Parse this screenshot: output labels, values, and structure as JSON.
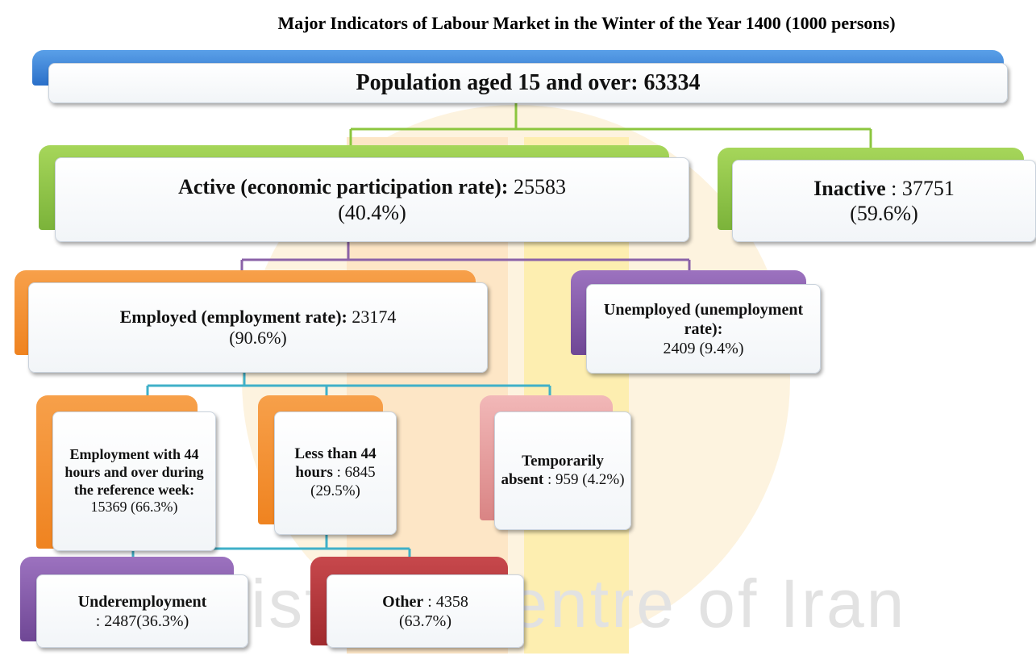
{
  "title": "Major Indicators of Labour Market in the Winter of the Year 1400 (1000 persons)",
  "watermark": "Statistical Centre of Iran",
  "nodes": [
    {
      "label": "Population aged 15 and over: 63334"
    },
    {
      "label": "Active (economic participation rate):",
      "value": "25583",
      "share": "(40.4%)"
    },
    {
      "label": "Inactive",
      "value": ": 37751",
      "share": "(59.6%)"
    },
    {
      "label": "Employed (employment rate):",
      "value": "23174",
      "share": "(90.6%)"
    },
    {
      "label": "Unemployed (unemployment rate):",
      "value": "2409 (9.4%)"
    },
    {
      "label": "Employment with 44 hours and over during the reference week:",
      "value": "15369",
      "share": "(66.3%)"
    },
    {
      "label": "Less than 44 hours",
      "value": ": 6845",
      "share": "(29.5%)"
    },
    {
      "label": "Temporarily absent",
      "value": ": 959",
      "share": "(4.2%)"
    },
    {
      "label": "Underemployment",
      "value": ": 2487(36.3%)"
    },
    {
      "label": "Other",
      "value": ": 4358",
      "share": "(63.7%)"
    }
  ]
}
